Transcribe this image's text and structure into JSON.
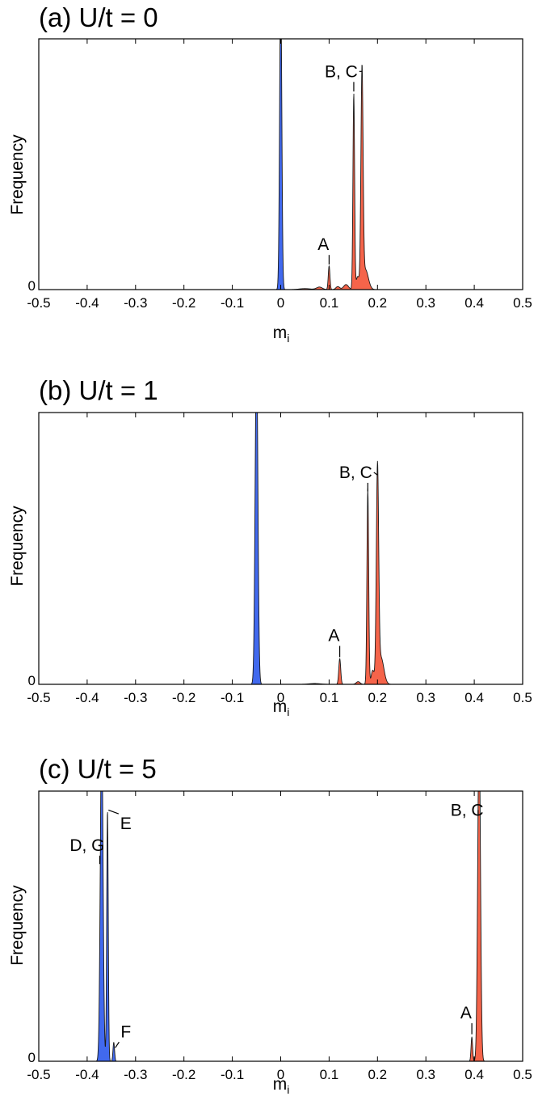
{
  "colors": {
    "blue": "#4169ee",
    "red": "#f5644a",
    "stroke": "#1a1a1a"
  },
  "chart_data": [
    {
      "type": "area",
      "title": "(a) U/t = 0",
      "xlabel": "m",
      "xlabel_sub": "i",
      "ylabel": "Frequency",
      "xlim": [
        -0.5,
        0.5
      ],
      "xticks": [
        "-0.5",
        "-0.4",
        "-0.3",
        "-0.2",
        "-0.1",
        "0",
        "0.1",
        "0.2",
        "0.3",
        "0.4",
        "0.5"
      ],
      "ytick_label": "0",
      "grid": false,
      "legend": "none",
      "series": [
        {
          "color": "blue",
          "peaks": [
            [
              0.0,
              1.25,
              0.0022
            ]
          ]
        },
        {
          "color": "red",
          "peaks": [
            [
              0.05,
              0.004,
              0.012
            ],
            [
              0.08,
              0.01,
              0.006
            ],
            [
              0.1,
              0.095,
              0.0017
            ],
            [
              0.118,
              0.012,
              0.004
            ],
            [
              0.135,
              0.02,
              0.005
            ],
            [
              0.151,
              0.78,
              0.0017
            ],
            [
              0.159,
              0.05,
              0.003
            ],
            [
              0.168,
              0.86,
              0.0022
            ],
            [
              0.175,
              0.08,
              0.006
            ]
          ]
        }
      ],
      "annotations": [
        {
          "text": "A",
          "label_x": 0.088,
          "label_y": 0.18,
          "points": [
            [
              0.1,
              0.1
            ]
          ]
        },
        {
          "text": "B, C",
          "label_x": 0.125,
          "label_y": 0.87,
          "points": [
            [
              0.151,
              0.79
            ],
            [
              0.168,
              0.87
            ]
          ]
        }
      ]
    },
    {
      "type": "area",
      "title": "(b) U/t = 1",
      "xlabel": "m",
      "xlabel_sub": "i",
      "ylabel": "Frequency",
      "xlim": [
        -0.5,
        0.5
      ],
      "xticks": [
        "-0.5",
        "-0.4",
        "-0.3",
        "-0.2",
        "-0.1",
        "0",
        "0.1",
        "0.2",
        "0.3",
        "0.4",
        "0.5"
      ],
      "ytick_label": "0",
      "grid": false,
      "legend": "none",
      "series": [
        {
          "color": "blue",
          "peaks": [
            [
              -0.05,
              1.25,
              0.0028
            ]
          ]
        },
        {
          "color": "red",
          "peaks": [
            [
              0.07,
              0.003,
              0.012
            ],
            [
              0.122,
              0.095,
              0.002
            ],
            [
              0.16,
              0.01,
              0.004
            ],
            [
              0.18,
              0.72,
              0.0018
            ],
            [
              0.19,
              0.05,
              0.003
            ],
            [
              0.2,
              0.77,
              0.0024
            ],
            [
              0.207,
              0.1,
              0.006
            ]
          ]
        }
      ],
      "annotations": [
        {
          "text": "A",
          "label_x": 0.11,
          "label_y": 0.18,
          "points": [
            [
              0.122,
              0.1
            ]
          ]
        },
        {
          "text": "B, C",
          "label_x": 0.155,
          "label_y": 0.78,
          "points": [
            [
              0.18,
              0.71
            ],
            [
              0.2,
              0.77
            ]
          ]
        }
      ]
    },
    {
      "type": "area",
      "title": "(c) U/t = 5",
      "xlabel": "m",
      "xlabel_sub": "i",
      "ylabel": "Frequency",
      "xlim": [
        -0.5,
        0.5
      ],
      "xticks": [
        "-0.5",
        "-0.4",
        "-0.3",
        "-0.2",
        "-0.1",
        "0",
        "0.1",
        "0.2",
        "0.3",
        "0.4",
        "0.5"
      ],
      "ytick_label": "0",
      "grid": false,
      "legend": "none",
      "series": [
        {
          "color": "blue",
          "peaks": [
            [
              -0.37,
              1.25,
              0.0028
            ],
            [
              -0.358,
              0.93,
              0.0016
            ],
            [
              -0.345,
              0.07,
              0.0016
            ]
          ]
        },
        {
          "color": "red",
          "peaks": [
            [
              0.395,
              0.09,
              0.0016
            ],
            [
              0.41,
              1.25,
              0.0028
            ]
          ]
        }
      ],
      "annotations": [
        {
          "text": "D, G",
          "label_x": -0.4,
          "label_y": 0.8,
          "points": [
            [
              -0.374,
              0.73
            ]
          ]
        },
        {
          "text": "E",
          "label_x": -0.32,
          "label_y": 0.88,
          "points": [
            [
              -0.356,
              0.93
            ]
          ]
        },
        {
          "text": "F",
          "label_x": -0.32,
          "label_y": 0.11,
          "points": [
            [
              -0.342,
              0.05
            ]
          ]
        },
        {
          "text": "A",
          "label_x": 0.383,
          "label_y": 0.18,
          "points": [
            [
              0.395,
              0.1
            ]
          ]
        },
        {
          "text": "B, C",
          "label_x": 0.385,
          "label_y": 0.93,
          "points": [
            [
              0.408,
              0.91
            ]
          ]
        }
      ]
    }
  ]
}
